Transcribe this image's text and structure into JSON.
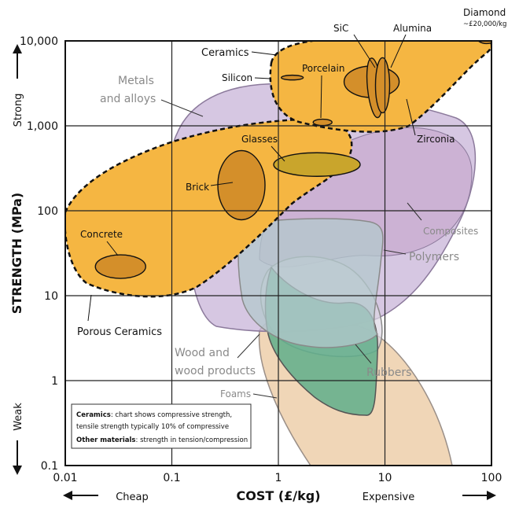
{
  "chart_data": {
    "type": "bubble-region",
    "title": "",
    "xlabel": "COST (£/kg)",
    "ylabel": "STRENGTH (MPa)",
    "x_scale": "log",
    "y_scale": "log",
    "xlim": [
      0.01,
      100
    ],
    "ylim": [
      0.1,
      10000
    ],
    "grid": true,
    "x_ticks": [
      0.01,
      0.1,
      1,
      10,
      100
    ],
    "x_tick_labels": [
      "0.01",
      "0.1",
      "1",
      "10",
      "100"
    ],
    "y_ticks": [
      0.1,
      1,
      10,
      100,
      1000,
      10000
    ],
    "y_tick_labels": [
      "0.1",
      "1",
      "10",
      "100",
      "1,000",
      "10,000"
    ],
    "x_axis_words": {
      "low": "Cheap",
      "high": "Expensive"
    },
    "y_axis_words": {
      "low": "Weak",
      "high": "Strong"
    },
    "colors": {
      "ceramics": "#f5b642",
      "ceramic_item": "#d48f2a",
      "glasses": "#c9a52c",
      "metals": "#c8b4d8",
      "composites": "#c4a4cc",
      "polymers": "#b3c8cc",
      "wood": "#5fae8b",
      "rubbers": "#ddd7e4",
      "foams": "#f0d6b7",
      "outline": "#111111"
    },
    "regions": [
      {
        "name": "Metals and alloys",
        "x_range": [
          0.13,
          100
        ],
        "y_range": [
          3.5,
          6000
        ]
      },
      {
        "name": "Composites",
        "x_range": [
          0.55,
          75
        ],
        "y_range": [
          35,
          2500
        ]
      },
      {
        "name": "Polymers",
        "x_range": [
          0.7,
          20
        ],
        "y_range": [
          2.5,
          150
        ]
      },
      {
        "name": "Rubbers",
        "x_range": [
          1.3,
          10
        ],
        "y_range": [
          2,
          30
        ]
      },
      {
        "name": "Wood and wood products",
        "x_range": [
          0.8,
          9
        ],
        "y_range": [
          0.4,
          180
        ]
      },
      {
        "name": "Foams",
        "x_range": [
          1.3,
          60
        ],
        "y_range": [
          0.1,
          8
        ]
      },
      {
        "name": "Porous Ceramics",
        "x_range": [
          0.01,
          4.5
        ],
        "y_range": [
          10,
          1100
        ]
      },
      {
        "name": "Ceramics",
        "x_range": [
          0.9,
          100
        ],
        "y_range": [
          900,
          12000
        ]
      }
    ],
    "items": [
      {
        "name": "Concrete",
        "x": 0.033,
        "y": 22
      },
      {
        "name": "Brick",
        "x": 0.45,
        "y": 200
      },
      {
        "name": "Glasses",
        "x": 2.3,
        "y": 350
      },
      {
        "name": "Silicon",
        "x": 1.35,
        "y": 3700
      },
      {
        "name": "Porcelain",
        "x": 2.6,
        "y": 1100
      },
      {
        "name": "SiC",
        "x": 8,
        "y": 2800
      },
      {
        "name": "Alumina",
        "x": 9.5,
        "y": 3000
      },
      {
        "name": "Zirconia",
        "x": 7.5,
        "y": 3300
      },
      {
        "name": "Diamond",
        "x": 90,
        "y": 11500
      }
    ],
    "labels": {
      "metals": [
        "Metals",
        "and alloys"
      ],
      "composites": "Composites",
      "polymers": "Polymers",
      "wood": [
        "Wood and",
        "wood products"
      ],
      "rubbers": "Rubbers",
      "foams": "Foams",
      "ceramics": "Ceramics",
      "porous": "Porous Ceramics",
      "concrete": "Concrete",
      "brick": "Brick",
      "glasses": "Glasses",
      "silicon": "Silicon",
      "porcelain": "Porcelain",
      "sic": "SiC",
      "alumina": "Alumina",
      "zirconia": "Zirconia",
      "diamond": "Diamond",
      "diamond_price": "~£20,000/kg"
    },
    "note": {
      "line1_bold": "Ceramics",
      "line1_rest": ": chart shows compressive strength,",
      "line2": "tensile strength typically 10% of compressive",
      "line3_bold": "Other materials",
      "line3_rest": ": strength in tension/compression"
    }
  }
}
